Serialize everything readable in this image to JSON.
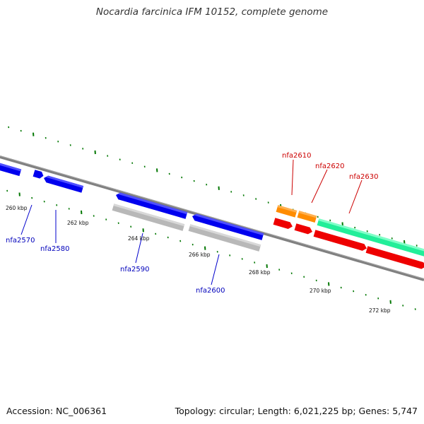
{
  "title": "Nocardia farcinica IFM 10152, complete genome",
  "footer": {
    "accession": "Accession: NC_006361",
    "summary": "Topology: circular; Length: 6,021,225 bp; Genes: 5,747"
  },
  "colors": {
    "forward_cds": "#0000ee",
    "pseudo_cds": "#b8b8b8",
    "reverse_cds": "#ee0000",
    "rna": "#ff8c00",
    "other": "#22ee99",
    "ticks": "#007700",
    "backbone": "#808080"
  },
  "kbp_labels": [
    "260 kbp",
    "262 kbp",
    "264 kbp",
    "266 kbp",
    "268 kbp",
    "270 kbp",
    "272 kbp"
  ],
  "gene_labels_forward": [
    "nfa2570",
    "nfa2580",
    "nfa2590",
    "nfa2600"
  ],
  "gene_labels_reverse": [
    "nfa2610",
    "nfa2620",
    "nfa2630"
  ]
}
